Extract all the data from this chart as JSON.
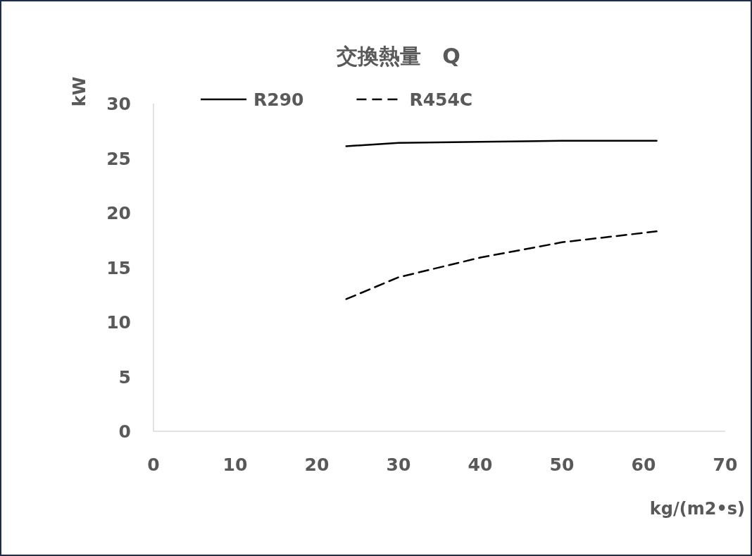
{
  "chart_data": {
    "type": "line",
    "title": "交換熱量　Q",
    "xlabel": "kg/(m2•s)",
    "ylabel": "kW",
    "xlim": [
      0,
      70
    ],
    "ylim": [
      0,
      30
    ],
    "xticks": [
      0,
      10,
      20,
      30,
      40,
      50,
      60,
      70
    ],
    "yticks": [
      0,
      5,
      10,
      15,
      20,
      25,
      30
    ],
    "legend": "top",
    "series": [
      {
        "name": "R290",
        "color": "#000000",
        "line_style": "solid",
        "x": [
          23.6,
          30,
          40,
          50,
          61.6
        ],
        "values": [
          26.1,
          26.4,
          26.5,
          26.6,
          26.6
        ]
      },
      {
        "name": "R454C",
        "color": "#000000",
        "line_style": "dashed",
        "x": [
          23.6,
          30,
          40,
          50,
          61.6
        ],
        "values": [
          12.1,
          14.1,
          15.9,
          17.3,
          18.3
        ]
      }
    ]
  }
}
